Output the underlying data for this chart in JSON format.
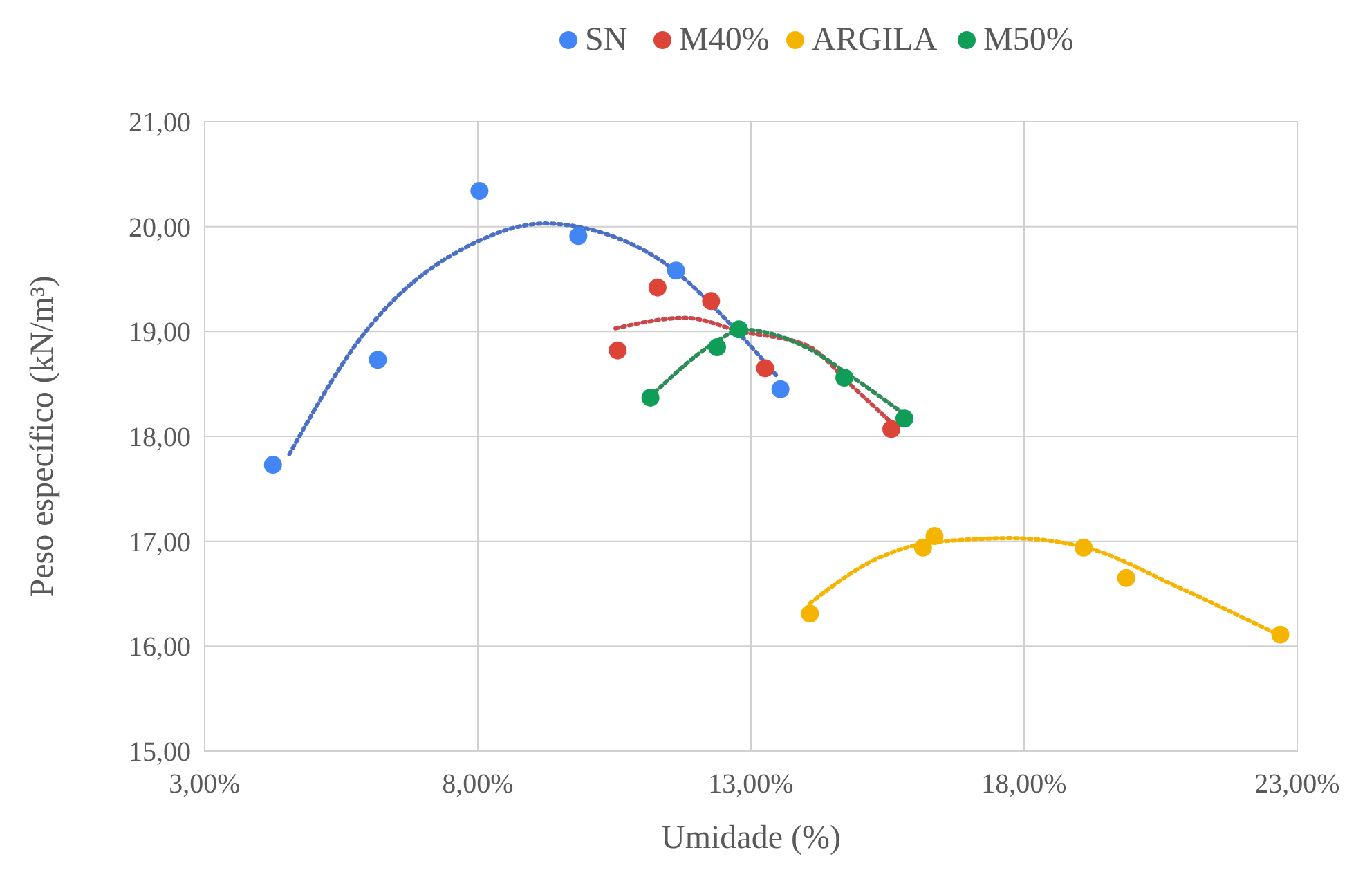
{
  "chart_data": {
    "type": "scatter",
    "xlabel": "Umidade (%)",
    "ylabel": "Peso específico (kN/m³)",
    "xlim": [
      3,
      23
    ],
    "xticks": [
      {
        "value": 3,
        "label": "3,00%"
      },
      {
        "value": 8,
        "label": "8,00%"
      },
      {
        "value": 13,
        "label": "13,00%"
      },
      {
        "value": 18,
        "label": "18,00%"
      },
      {
        "value": 23,
        "label": "23,00%"
      }
    ],
    "ylim": [
      15,
      21
    ],
    "yticks": [
      {
        "value": 15,
        "label": "15,00"
      },
      {
        "value": 16,
        "label": "16,00"
      },
      {
        "value": 17,
        "label": "17,00"
      },
      {
        "value": 18,
        "label": "18,00"
      },
      {
        "value": 19,
        "label": "19,00"
      },
      {
        "value": 20,
        "label": "20,00"
      },
      {
        "value": 21,
        "label": "21,00"
      }
    ],
    "grid": true,
    "legend": "top",
    "marker": "circle",
    "series": [
      {
        "type": "line",
        "line_style": "dotted",
        "marker": "none",
        "color": "#4a6fc4",
        "x": [
          4.55,
          5.83,
          7.96,
          9.24,
          10.08,
          11.37,
          12.82,
          13.5
        ],
        "values": [
          17.83,
          18.92,
          19.85,
          20.03,
          19.97,
          19.67,
          18.96,
          18.56
        ]
      },
      {
        "type": "line",
        "line_style": "dotted",
        "marker": "none",
        "color": "#c9474a",
        "x": [
          10.52,
          11.8,
          12.82,
          14.01,
          14.87,
          15.55
        ],
        "values": [
          19.03,
          19.13,
          19.0,
          18.87,
          18.47,
          18.14
        ]
      },
      {
        "type": "line",
        "line_style": "dotted",
        "marker": "none",
        "color": "#f4b400",
        "x": [
          14.08,
          15.29,
          16.32,
          17.76,
          19.13,
          20.83,
          22.69
        ],
        "values": [
          16.41,
          16.83,
          16.99,
          17.03,
          16.94,
          16.56,
          16.1
        ]
      },
      {
        "type": "line",
        "line_style": "dotted",
        "marker": "none",
        "color": "#2e8b57",
        "x": [
          11.24,
          12.39,
          12.82,
          14.01,
          14.87,
          15.81
        ],
        "values": [
          18.42,
          18.91,
          19.02,
          18.85,
          18.56,
          18.21
        ]
      },
      {
        "name": "SN",
        "color": "#4285f4",
        "x": [
          4.25,
          6.17,
          8.03,
          9.84,
          11.63,
          13.54
        ],
        "values": [
          17.73,
          18.73,
          20.34,
          19.91,
          19.58,
          18.45
        ]
      },
      {
        "name": "M40%",
        "color": "#db4437",
        "x": [
          10.56,
          11.29,
          12.27,
          13.26,
          15.57
        ],
        "values": [
          18.82,
          19.42,
          19.29,
          18.65,
          18.07
        ]
      },
      {
        "name": "ARGILA",
        "color": "#f4b400",
        "x": [
          14.08,
          16.15,
          16.36,
          19.09,
          19.87,
          22.69
        ],
        "values": [
          16.31,
          16.94,
          17.05,
          16.94,
          16.65,
          16.11
        ]
      },
      {
        "name": "M50%",
        "color": "#0f9d58",
        "x": [
          11.16,
          12.38,
          12.78,
          14.71,
          15.81
        ],
        "values": [
          18.37,
          18.85,
          19.02,
          18.56,
          18.17
        ]
      }
    ]
  }
}
